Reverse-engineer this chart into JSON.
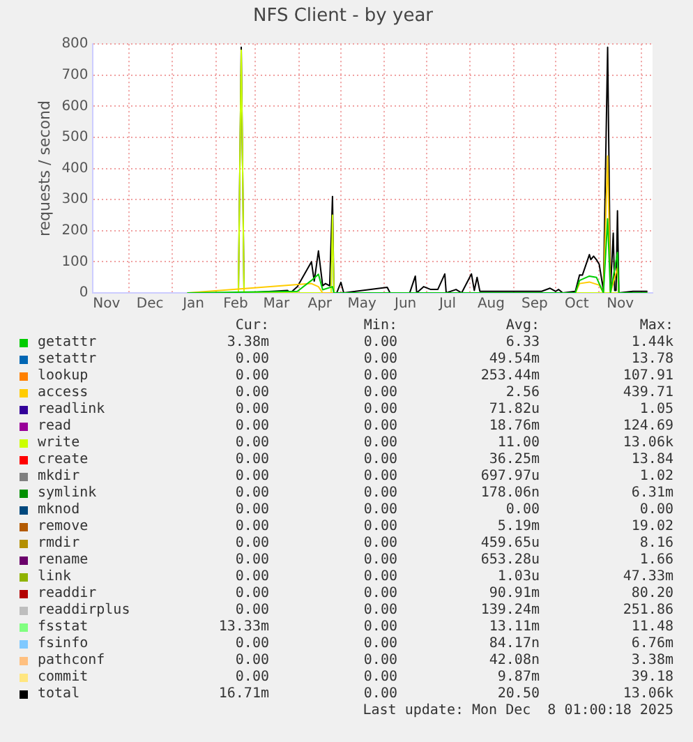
{
  "chart_data": {
    "type": "line",
    "title": "NFS Client - by year",
    "ylabel": "requests / second",
    "xlim": [
      "2024-11-05",
      "2025-12-09"
    ],
    "ylim": [
      0,
      800
    ],
    "yticks": [
      0,
      100,
      200,
      300,
      400,
      500,
      600,
      700,
      800
    ],
    "xticks": [
      {
        "value": "2024-11-15",
        "label": "Nov"
      },
      {
        "value": "2024-12-01",
        "label": null
      },
      {
        "value": "2024-12-16",
        "label": "Dec"
      },
      {
        "value": "2025-01-01",
        "label": null
      },
      {
        "value": "2025-01-16",
        "label": "Jan"
      },
      {
        "value": "2025-02-01",
        "label": null
      },
      {
        "value": "2025-02-15",
        "label": "Feb"
      },
      {
        "value": "2025-03-01",
        "label": null
      },
      {
        "value": "2025-03-16",
        "label": "Mar"
      },
      {
        "value": "2025-04-01",
        "label": null
      },
      {
        "value": "2025-04-16",
        "label": "Apr"
      },
      {
        "value": "2025-05-01",
        "label": null
      },
      {
        "value": "2025-05-16",
        "label": "May"
      },
      {
        "value": "2025-06-01",
        "label": null
      },
      {
        "value": "2025-06-16",
        "label": "Jun"
      },
      {
        "value": "2025-07-01",
        "label": null
      },
      {
        "value": "2025-07-16",
        "label": "Jul"
      },
      {
        "value": "2025-08-01",
        "label": null
      },
      {
        "value": "2025-08-16",
        "label": "Aug"
      },
      {
        "value": "2025-09-01",
        "label": null
      },
      {
        "value": "2025-09-16",
        "label": "Sep"
      },
      {
        "value": "2025-10-01",
        "label": null
      },
      {
        "value": "2025-10-16",
        "label": "Oct"
      },
      {
        "value": "2025-11-01",
        "label": null
      },
      {
        "value": "2025-11-16",
        "label": "Nov"
      },
      {
        "value": "2025-12-01",
        "label": null
      }
    ],
    "grid": true,
    "legend": "bottom",
    "series": [
      {
        "name": "getattr",
        "color": "#00cc00",
        "x": [
          "2025-01-12",
          "2025-03-31",
          "2025-04-10",
          "2025-04-15",
          "2025-04-18",
          "2025-04-25",
          "2025-04-26",
          "2025-10-15",
          "2025-10-18",
          "2025-10-25",
          "2025-10-30",
          "2025-11-01",
          "2025-11-04",
          "2025-11-07",
          "2025-11-09",
          "2025-11-14",
          "2025-11-15",
          "2025-12-05"
        ],
        "values": [
          0,
          5,
          40,
          60,
          10,
          20,
          0,
          0,
          40,
          54,
          50,
          30,
          0,
          238,
          0,
          130,
          0,
          0
        ]
      },
      {
        "name": "setattr",
        "color": "#0066b3"
      },
      {
        "name": "lookup",
        "color": "#ff8000"
      },
      {
        "name": "access",
        "color": "#ffcc00",
        "x": [
          "2025-01-12",
          "2025-04-10",
          "2025-04-15",
          "2025-04-18",
          "2025-10-15",
          "2025-10-18",
          "2025-10-25",
          "2025-11-01",
          "2025-11-04",
          "2025-11-07",
          "2025-11-09",
          "2025-11-14",
          "2025-11-15",
          "2025-12-05"
        ],
        "values": [
          0,
          30,
          20,
          0,
          0,
          30,
          35,
          25,
          0,
          440,
          0,
          80,
          0,
          0
        ]
      },
      {
        "name": "readlink",
        "color": "#330099"
      },
      {
        "name": "read",
        "color": "#990099"
      },
      {
        "name": "write",
        "color": "#ccff00",
        "x": [
          "2025-01-12",
          "2025-02-17",
          "2025-02-19",
          "2025-02-21",
          "2025-04-24",
          "2025-04-25",
          "2025-04-26",
          "2025-12-05"
        ],
        "values": [
          0,
          0,
          780,
          0,
          0,
          250,
          0,
          0
        ]
      },
      {
        "name": "create",
        "color": "#ff0000"
      },
      {
        "name": "mkdir",
        "color": "#808080"
      },
      {
        "name": "symlink",
        "color": "#008f00"
      },
      {
        "name": "mknod",
        "color": "#00487d"
      },
      {
        "name": "remove",
        "color": "#b35a00"
      },
      {
        "name": "rmdir",
        "color": "#b38f00"
      },
      {
        "name": "rename",
        "color": "#6b006b"
      },
      {
        "name": "link",
        "color": "#8fb300"
      },
      {
        "name": "readdir",
        "color": "#b30000"
      },
      {
        "name": "readdirplus",
        "color": "#bebebe"
      },
      {
        "name": "fsstat",
        "color": "#80ff80"
      },
      {
        "name": "fsinfo",
        "color": "#80c9ff"
      },
      {
        "name": "pathconf",
        "color": "#ffc080"
      },
      {
        "name": "commit",
        "color": "#ffe680"
      },
      {
        "name": "total",
        "color": "#000000",
        "x": [
          "2025-01-12",
          "2025-02-17",
          "2025-02-19",
          "2025-02-21",
          "2025-03-24",
          "2025-03-26",
          "2025-03-31",
          "2025-04-10",
          "2025-04-12",
          "2025-04-15",
          "2025-04-18",
          "2025-04-20",
          "2025-04-23",
          "2025-04-25",
          "2025-04-26",
          "2025-04-28",
          "2025-05-01",
          "2025-05-03",
          "2025-06-03",
          "2025-06-05",
          "2025-06-19",
          "2025-06-23",
          "2025-06-24",
          "2025-06-29",
          "2025-07-04",
          "2025-07-09",
          "2025-07-14",
          "2025-07-15",
          "2025-07-22",
          "2025-07-26",
          "2025-08-02",
          "2025-08-04",
          "2025-08-06",
          "2025-08-08",
          "2025-09-21",
          "2025-09-27",
          "2025-10-01",
          "2025-10-03",
          "2025-10-06",
          "2025-10-15",
          "2025-10-18",
          "2025-10-20",
          "2025-10-25",
          "2025-10-26",
          "2025-10-28",
          "2025-10-30",
          "2025-11-01",
          "2025-11-04",
          "2025-11-07",
          "2025-11-09",
          "2025-11-11",
          "2025-11-12",
          "2025-11-13",
          "2025-11-14",
          "2025-11-15",
          "2025-11-25",
          "2025-12-05"
        ],
        "values": [
          0,
          0,
          790,
          0,
          8,
          0,
          20,
          100,
          38,
          135,
          23,
          30,
          23,
          310,
          0,
          0,
          34,
          0,
          18,
          0,
          0,
          54,
          0,
          20,
          11,
          11,
          61,
          0,
          11,
          0,
          61,
          8,
          50,
          5,
          5,
          15,
          5,
          11,
          0,
          5,
          58,
          57,
          123,
          107,
          118,
          107,
          92,
          8,
          790,
          8,
          192,
          8,
          8,
          264,
          0,
          5,
          5
        ]
      }
    ],
    "annotations": [
      "Cur:",
      "Min:",
      "Avg:",
      "Max:",
      "3.38m",
      "0.00",
      "6.33",
      "1.44k",
      "0.00",
      "0.00",
      "49.54m",
      "13.78",
      "0.00",
      "0.00",
      "253.44m",
      "107.91",
      "0.00",
      "0.00",
      "2.56",
      "439.71",
      "0.00",
      "0.00",
      "71.82u",
      "1.05",
      "0.00",
      "0.00",
      "18.76m",
      "124.69",
      "0.00",
      "0.00",
      "11.00",
      "13.06k",
      "0.00",
      "0.00",
      "36.25m",
      "13.84",
      "0.00",
      "0.00",
      "697.97u",
      "1.02",
      "0.00",
      "0.00",
      "178.06n",
      "6.31m",
      "0.00",
      "0.00",
      "0.00",
      "0.00",
      "0.00",
      "0.00",
      "5.19m",
      "19.02",
      "0.00",
      "0.00",
      "459.65u",
      "8.16",
      "0.00",
      "0.00",
      "653.28u",
      "1.66",
      "0.00",
      "0.00",
      "1.03u",
      "47.33m",
      "0.00",
      "0.00",
      "90.91m",
      "80.20",
      "0.00",
      "0.00",
      "139.24m",
      "251.86",
      "13.33m",
      "0.00",
      "13.11m",
      "11.48",
      "0.00",
      "0.00",
      "84.17n",
      "6.76m",
      "0.00",
      "0.00",
      "42.08n",
      "3.38m",
      "0.00",
      "0.00",
      "9.87m",
      "39.18",
      "16.71m",
      "0.00",
      "20.50",
      "13.06k",
      "Last update: Mon Dec  8 01:00:18 2025"
    ]
  }
}
